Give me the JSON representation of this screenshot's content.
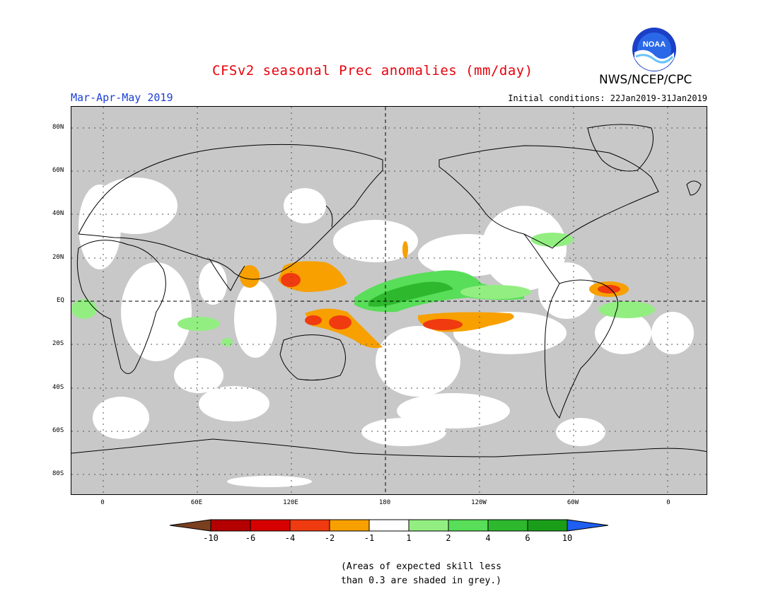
{
  "title": "CFSv2 seasonal Prec anomalies (mm/day)",
  "agency": "NWS/NCEP/CPC",
  "logo_text": "NOAA",
  "season": "Mar-Apr-May 2019",
  "initial_conditions": "Initial conditions: 22Jan2019-31Jan2019",
  "lat_labels": [
    "80N",
    "60N",
    "40N",
    "20N",
    "EQ",
    "20S",
    "40S",
    "60S",
    "80S"
  ],
  "lon_labels": [
    "0",
    "60E",
    "120E",
    "180",
    "120W",
    "60W",
    "0"
  ],
  "colorbar": {
    "labels": [
      "-10",
      "-6",
      "-4",
      "-2",
      "-1",
      "1",
      "2",
      "4",
      "6",
      "10"
    ],
    "colors": [
      "#7a3f1f",
      "#b40000",
      "#d60000",
      "#f03a10",
      "#f7a000",
      "#ffffff",
      "#93ee82",
      "#58de58",
      "#2eb82e",
      "#1a9e1a",
      "#1e5ef0"
    ]
  },
  "note_line1": "(Areas of expected skill less",
  "note_line2": "than 0.3 are shaded in grey.)",
  "colors": {
    "title": "#e8000b",
    "season": "#1a3fd6",
    "skill_mask": "#c8c8c8",
    "land_outline": "#000000"
  }
}
